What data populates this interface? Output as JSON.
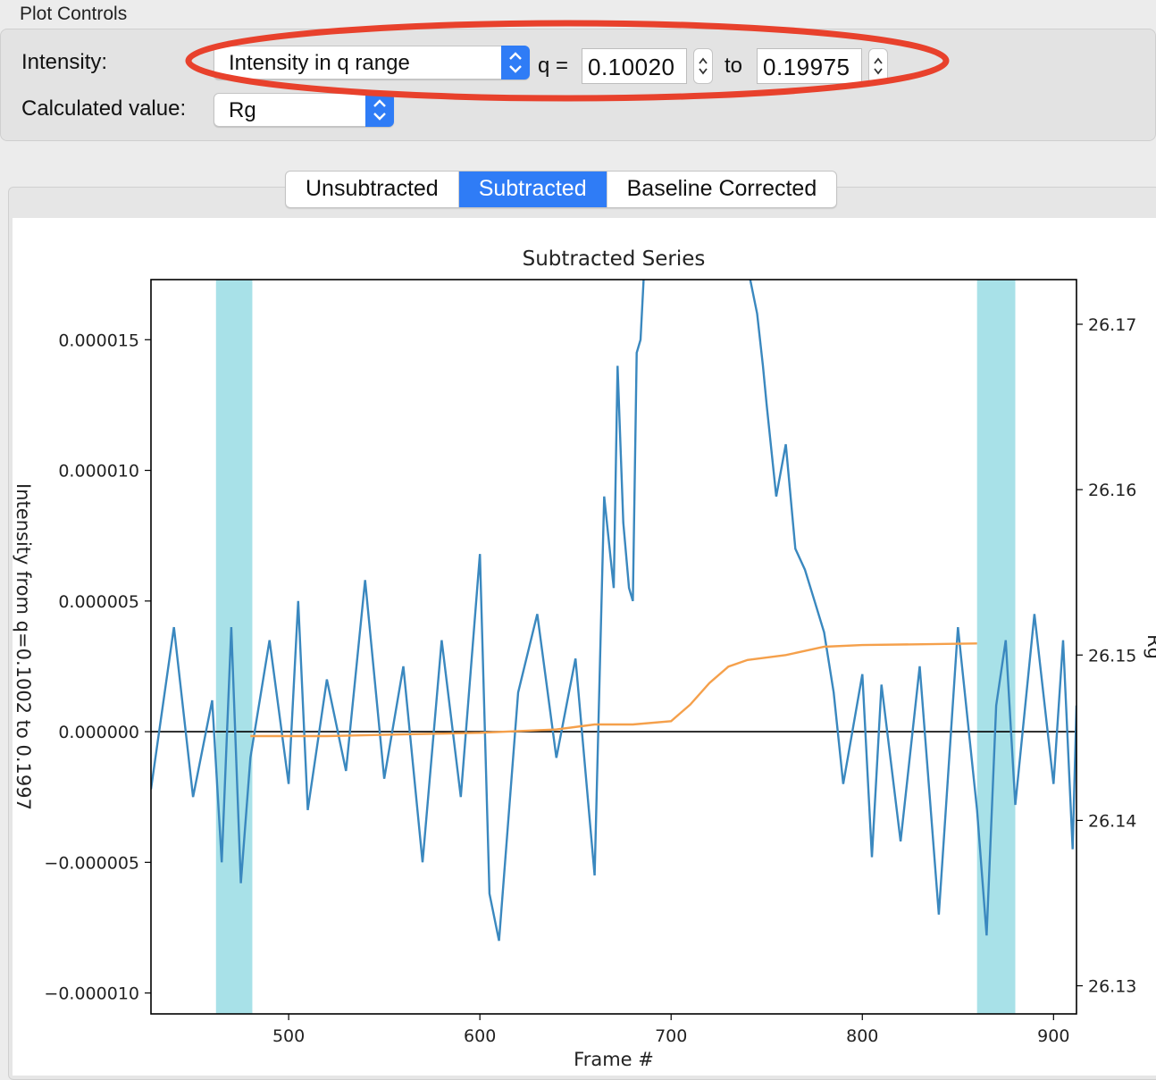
{
  "plot_controls": {
    "title": "Plot Controls",
    "intensity_label": "Intensity:",
    "intensity_value": "Intensity in q range",
    "q_label": "q =",
    "q_min": "0.10020",
    "to_label": "to",
    "q_max": "0.19975",
    "calc_label": "Calculated value:",
    "calc_value": "Rg"
  },
  "tabs": [
    "Unsubtracted",
    "Subtracted",
    "Baseline Corrected"
  ],
  "colors": {
    "accent": "#2f7cf6",
    "annotation": "#e8412c",
    "intensity_line": "#3a88bf",
    "rg_line": "#f5a04b",
    "region": "#a8e1e8"
  },
  "chart_data": {
    "type": "line",
    "title": "Subtracted Series",
    "xlabel": "Frame #",
    "ylabel_left": "Intensity from q=0.1002 to 0.1997",
    "ylabel_right": "Rg",
    "xlim": [
      428,
      912
    ],
    "ylim_left": [
      -1.08e-05,
      1.73e-05
    ],
    "ylim_right": [
      26.1283,
      26.1727
    ],
    "x_ticks": [
      "500",
      "600",
      "700",
      "800",
      "900"
    ],
    "y_ticks_left": [
      "0.000015",
      "0.000010",
      "0.000005",
      "0.000000",
      "−0.000005",
      "−0.000010"
    ],
    "y_ticks_right": [
      "26.17",
      "26.16",
      "26.15",
      "26.14",
      "26.13"
    ],
    "highlight_regions": [
      [
        462,
        481
      ],
      [
        860,
        880
      ]
    ],
    "series": [
      {
        "name": "Intensity",
        "axis": "left",
        "color": "#3a88bf",
        "x": [
          428,
          440,
          450,
          460,
          465,
          470,
          475,
          480,
          490,
          500,
          505,
          510,
          520,
          530,
          540,
          550,
          560,
          570,
          580,
          590,
          600,
          605,
          610,
          620,
          630,
          640,
          650,
          660,
          665,
          670,
          672,
          675,
          678,
          680,
          682,
          684,
          686,
          690,
          700,
          720,
          740,
          745,
          748,
          750,
          755,
          760,
          765,
          770,
          775,
          780,
          785,
          790,
          800,
          805,
          810,
          820,
          830,
          840,
          850,
          860,
          865,
          870,
          875,
          880,
          890,
          900,
          905,
          910,
          912
        ],
        "y": [
          -2.2e-06,
          4e-06,
          -2.5e-06,
          1.2e-06,
          -5e-06,
          4e-06,
          -5.8e-06,
          -1e-06,
          3.5e-06,
          -2e-06,
          5e-06,
          -3e-06,
          2e-06,
          -1.5e-06,
          5.8e-06,
          -1.8e-06,
          2.5e-06,
          -5e-06,
          3.5e-06,
          -2.5e-06,
          6.8e-06,
          -6.2e-06,
          -8e-06,
          1.5e-06,
          4.5e-06,
          -1e-06,
          2.8e-06,
          -5.5e-06,
          9e-06,
          5.5e-06,
          1.4e-05,
          8e-06,
          5.5e-06,
          5e-06,
          1.45e-05,
          1.5e-05,
          1.78e-05,
          1.78e-05,
          1.78e-05,
          1.78e-05,
          1.78e-05,
          1.6e-05,
          1.4e-05,
          1.25e-05,
          9e-06,
          1.1e-05,
          7e-06,
          6.2e-06,
          5e-06,
          3.8e-06,
          1.5e-06,
          -2e-06,
          2.2e-06,
          -4.8e-06,
          1.8e-06,
          -4.2e-06,
          2.5e-06,
          -7e-06,
          4e-06,
          -3e-06,
          -7.8e-06,
          1e-06,
          3.5e-06,
          -2.8e-06,
          4.5e-06,
          -2e-06,
          3.5e-06,
          -4.5e-06,
          1e-06
        ]
      },
      {
        "name": "Rg",
        "axis": "right",
        "color": "#f5a04b",
        "x": [
          480,
          520,
          560,
          600,
          640,
          660,
          680,
          700,
          710,
          720,
          730,
          740,
          760,
          780,
          800,
          860
        ],
        "y": [
          26.1451,
          26.1451,
          26.1452,
          26.1453,
          26.1455,
          26.1458,
          26.1458,
          26.146,
          26.147,
          26.1483,
          26.1493,
          26.1497,
          26.15,
          26.1505,
          26.1506,
          26.1507
        ]
      }
    ],
    "zero_line": 0,
    "grid": false
  }
}
